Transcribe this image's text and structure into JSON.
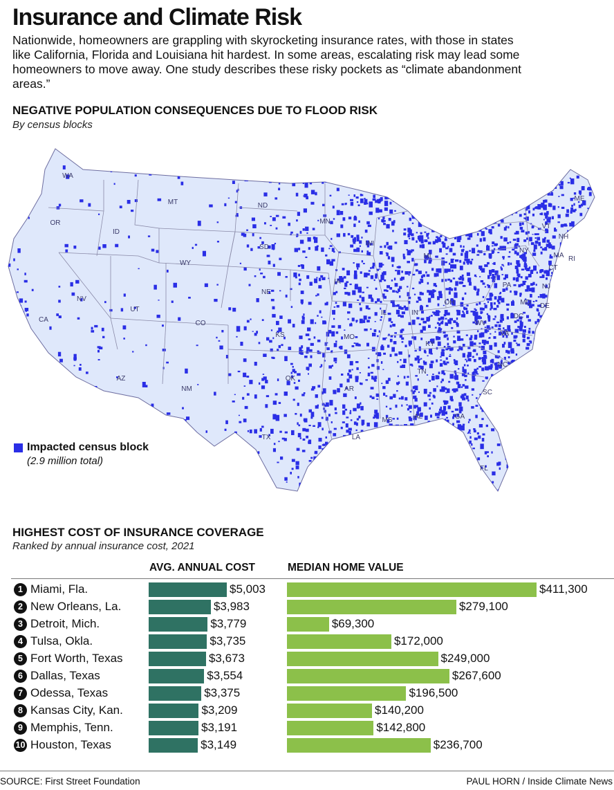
{
  "header": {
    "title": "Insurance and Climate Risk",
    "intro": "Nationwide, homeowners are grappling with skyrocketing insurance rates, with those in states like California, Florida and Louisiana hit hardest. In some areas, escalating risk may lead some homeowners to move away. One study describes these risky pockets as “climate abandonment areas.”"
  },
  "map_section": {
    "title": "NEGATIVE POPULATION CONSEQUENCES DUE TO FLOOD RISK",
    "subtitle": "By census blocks",
    "legend_label": "Impacted census block",
    "legend_note": "(2.9 million total)",
    "colors": {
      "impacted": "#2a2ee6",
      "base": "#dfe8fb",
      "borders": "#8a8aa8"
    },
    "state_labels": [
      "WA",
      "OR",
      "ID",
      "MT",
      "WY",
      "NV",
      "CA",
      "UT",
      "CO",
      "AZ",
      "NM",
      "ND",
      "SD",
      "NE",
      "KS",
      "OK",
      "TX",
      "MN",
      "IA",
      "MO",
      "AR",
      "LA",
      "WI",
      "IL",
      "MI",
      "IN",
      "OH",
      "KY",
      "TN",
      "MS",
      "AL",
      "GA",
      "FL",
      "SC",
      "NC",
      "VA",
      "WV",
      "PA",
      "NY",
      "VT",
      "NH",
      "ME",
      "MA",
      "CT",
      "RI",
      "NJ",
      "DE",
      "MD",
      "DC"
    ]
  },
  "table_section": {
    "title": "HIGHEST COST OF INSURANCE COVERAGE",
    "subtitle": "Ranked by annual insurance cost, 2021",
    "col_cost": "AVG. ANNUAL COST",
    "col_home": "MEDIAN HOME VALUE",
    "colors": {
      "cost_bar": "#2f7263",
      "home_bar": "#8cc04a"
    }
  },
  "chart_data": {
    "type": "bar",
    "title": "HIGHEST COST OF INSURANCE COVERAGE",
    "categories": [
      "Miami, Fla.",
      "New Orleans, La.",
      "Detroit, Mich.",
      "Tulsa, Okla.",
      "Fort Worth, Texas",
      "Dallas, Texas",
      "Odessa, Texas",
      "Kansas City, Kan.",
      "Memphis, Tenn.",
      "Houston, Texas"
    ],
    "ranks": [
      "1",
      "2",
      "3",
      "4",
      "5",
      "6",
      "7",
      "8",
      "9",
      "10"
    ],
    "series": [
      {
        "name": "AVG. ANNUAL COST",
        "values": [
          5003,
          3983,
          3779,
          3735,
          3673,
          3554,
          3375,
          3209,
          3191,
          3149
        ],
        "labels": [
          "$5,003",
          "$3,983",
          "$3,779",
          "$3,735",
          "$3,673",
          "$3,554",
          "$3,375",
          "$3,209",
          "$3,191",
          "$3,149"
        ]
      },
      {
        "name": "MEDIAN HOME VALUE",
        "values": [
          411300,
          279100,
          69300,
          172000,
          249000,
          267600,
          196500,
          140200,
          142800,
          236700
        ],
        "labels": [
          "$411,300",
          "$279,100",
          "$69,300",
          "$172,000",
          "$249,000",
          "$267,600",
          "$196,500",
          "$140,200",
          "$142,800",
          "$236,700"
        ]
      }
    ]
  },
  "footer": {
    "source": "SOURCE: First Street Foundation",
    "credit": "PAUL HORN / Inside Climate News"
  }
}
